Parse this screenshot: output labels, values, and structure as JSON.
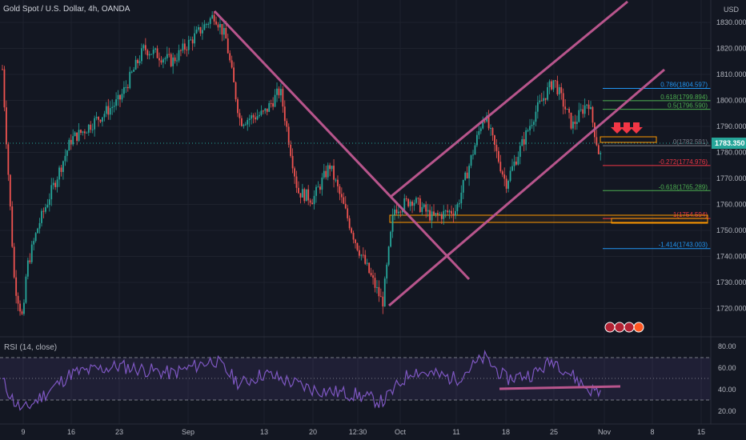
{
  "header": {
    "symbol": "Gold Spot / U.S. Dollar, 4h, OANDA",
    "currency": "USD",
    "current_price": "1783.350"
  },
  "colors": {
    "background": "#131722",
    "up": "#26a69a",
    "down": "#ef5350",
    "trendline": "#b8558c",
    "rsi_line": "#7e57c2",
    "rsi_band": "rgba(126,87,194,0.12)",
    "axis_text": "#b2b5be",
    "grid": "#1e222d"
  },
  "price_axis": {
    "ticks": [
      "1830.000",
      "1820.000",
      "1810.000",
      "1800.000",
      "1790.000",
      "1780.000",
      "1770.000",
      "1760.000",
      "1750.000",
      "1740.000",
      "1730.000",
      "1720.000"
    ]
  },
  "time_axis": {
    "labels": [
      "9",
      "16",
      "23",
      "Sep",
      "13",
      "20",
      "12:30",
      "Oct",
      "11",
      "18",
      "25",
      "Nov",
      "8",
      "15"
    ]
  },
  "fibonacci": [
    {
      "label": "0.786(1804.597)",
      "price": 1804.597,
      "color": "#2196f3"
    },
    {
      "label": "0.618(1799.894)",
      "price": 1799.894,
      "color": "#4caf50"
    },
    {
      "label": "0.5(1796.590)",
      "price": 1796.59,
      "color": "#4caf50"
    },
    {
      "label": "0(1782.591)",
      "price": 1782.591,
      "color": "#787b86"
    },
    {
      "label": "-0.272(1774.976)",
      "price": 1774.976,
      "color": "#f23645"
    },
    {
      "label": "-0.618(1765.289)",
      "price": 1765.289,
      "color": "#4caf50"
    },
    {
      "label": "-1(1754.594)",
      "price": 1754.594,
      "color": "#f23645"
    },
    {
      "label": "-1.414(1743.003)",
      "price": 1743.003,
      "color": "#2196f3"
    }
  ],
  "rsi": {
    "title": "RSI (14, close)",
    "ticks": [
      "80.00",
      "60.00",
      "40.00",
      "20.00"
    ]
  },
  "chart_data": {
    "type": "candlestick",
    "title": "Gold Spot / U.S. Dollar, 4h, OANDA",
    "y_unit": "USD",
    "ylim": [
      1712,
      1836
    ],
    "close_path": [
      [
        "Aug 3",
        1812
      ],
      [
        "Aug 6",
        1730
      ],
      [
        "Aug 9",
        1715
      ],
      [
        "Aug 10",
        1735
      ],
      [
        "Aug 12",
        1752
      ],
      [
        "Aug 16",
        1785
      ],
      [
        "Aug 18",
        1788
      ],
      [
        "Aug 23",
        1800
      ],
      [
        "Aug 26",
        1820
      ],
      [
        "Aug 30",
        1815
      ],
      [
        "Sep 3",
        1833
      ],
      [
        "Sep 6",
        1824
      ],
      [
        "Sep 9",
        1792
      ],
      [
        "Sep 13",
        1795
      ],
      [
        "Sep 15",
        1804
      ],
      [
        "Sep 17",
        1765
      ],
      [
        "Sep 20",
        1762
      ],
      [
        "Sep 23",
        1775
      ],
      [
        "Sep 27",
        1745
      ],
      [
        "Sep 30",
        1722
      ],
      [
        "Oct 1",
        1758
      ],
      [
        "Oct 4",
        1762
      ],
      [
        "Oct 7",
        1755
      ],
      [
        "Oct 11",
        1758
      ],
      [
        "Oct 14",
        1795
      ],
      [
        "Oct 18",
        1768
      ],
      [
        "Oct 22",
        1795
      ],
      [
        "Oct 25",
        1808
      ],
      [
        "Oct 28",
        1790
      ],
      [
        "Oct 29",
        1800
      ],
      [
        "Nov 1",
        1780
      ],
      [
        "Nov 2",
        1778
      ]
    ],
    "current_price": 1783.35,
    "rsi": {
      "ylim": [
        15,
        85
      ],
      "levels": [
        70,
        30
      ],
      "path": [
        [
          "Aug 3",
          48
        ],
        [
          "Aug 6",
          28
        ],
        [
          "Aug 9",
          20
        ],
        [
          "Aug 16",
          55
        ],
        [
          "Aug 23",
          62
        ],
        [
          "Aug 30",
          55
        ],
        [
          "Sep 3",
          68
        ],
        [
          "Sep 9",
          45
        ],
        [
          "Sep 13",
          55
        ],
        [
          "Sep 20",
          40
        ],
        [
          "Sep 27",
          35
        ],
        [
          "Sep 30",
          28
        ],
        [
          "Oct 4",
          58
        ],
        [
          "Oct 11",
          50
        ],
        [
          "Oct 14",
          70
        ],
        [
          "Oct 18",
          50
        ],
        [
          "Oct 22",
          55
        ],
        [
          "Oct 25",
          68
        ],
        [
          "Oct 29",
          40
        ],
        [
          "Nov 1",
          38
        ]
      ]
    }
  }
}
